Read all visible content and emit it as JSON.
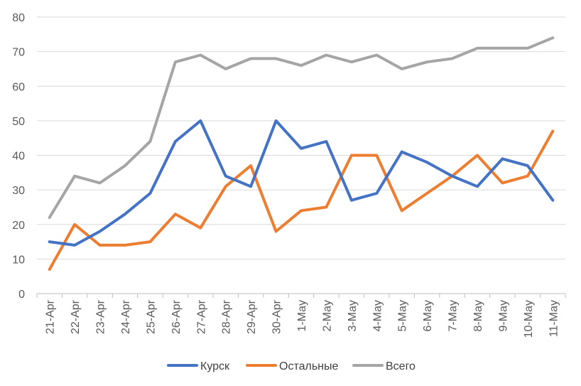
{
  "chart_data": {
    "type": "line",
    "title": "",
    "xlabel": "",
    "ylabel": "",
    "ylim": [
      0,
      80
    ],
    "yticks": [
      0,
      10,
      20,
      30,
      40,
      50,
      60,
      70,
      80
    ],
    "grid": "horizontal",
    "legend_position": "bottom",
    "categories": [
      "21-Apr",
      "22-Apr",
      "23-Apr",
      "24-Apr",
      "25-Apr",
      "26-Apr",
      "27-Apr",
      "28-Apr",
      "29-Apr",
      "30-Apr",
      "1-May",
      "2-May",
      "3-May",
      "4-May",
      "5-May",
      "6-May",
      "7-May",
      "8-May",
      "9-May",
      "10-May",
      "11-May"
    ],
    "series": [
      {
        "name": "Курск",
        "color": "#4472c4",
        "values": [
          15,
          14,
          18,
          23,
          29,
          44,
          50,
          34,
          31,
          50,
          42,
          44,
          27,
          29,
          41,
          38,
          34,
          31,
          39,
          37,
          27
        ]
      },
      {
        "name": "Остальные",
        "color": "#ed7d31",
        "values": [
          7,
          20,
          14,
          14,
          15,
          23,
          19,
          31,
          37,
          18,
          24,
          25,
          40,
          40,
          24,
          29,
          34,
          40,
          32,
          34,
          47
        ]
      },
      {
        "name": "Всего",
        "color": "#a5a5a5",
        "values": [
          22,
          34,
          32,
          37,
          44,
          67,
          69,
          65,
          68,
          68,
          66,
          69,
          67,
          69,
          65,
          67,
          68,
          71,
          71,
          71,
          74
        ]
      }
    ]
  }
}
